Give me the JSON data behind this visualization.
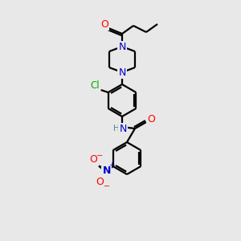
{
  "bg_color": "#e8e8e8",
  "bond_color": "#000000",
  "atom_colors": {
    "O": "#ff0000",
    "N": "#0000cc",
    "Cl": "#00aa00",
    "C": "#000000",
    "H": "#4a8a8a"
  },
  "figsize": [
    3.0,
    3.0
  ],
  "dpi": 100,
  "lw": 1.6,
  "fs": 8.0
}
